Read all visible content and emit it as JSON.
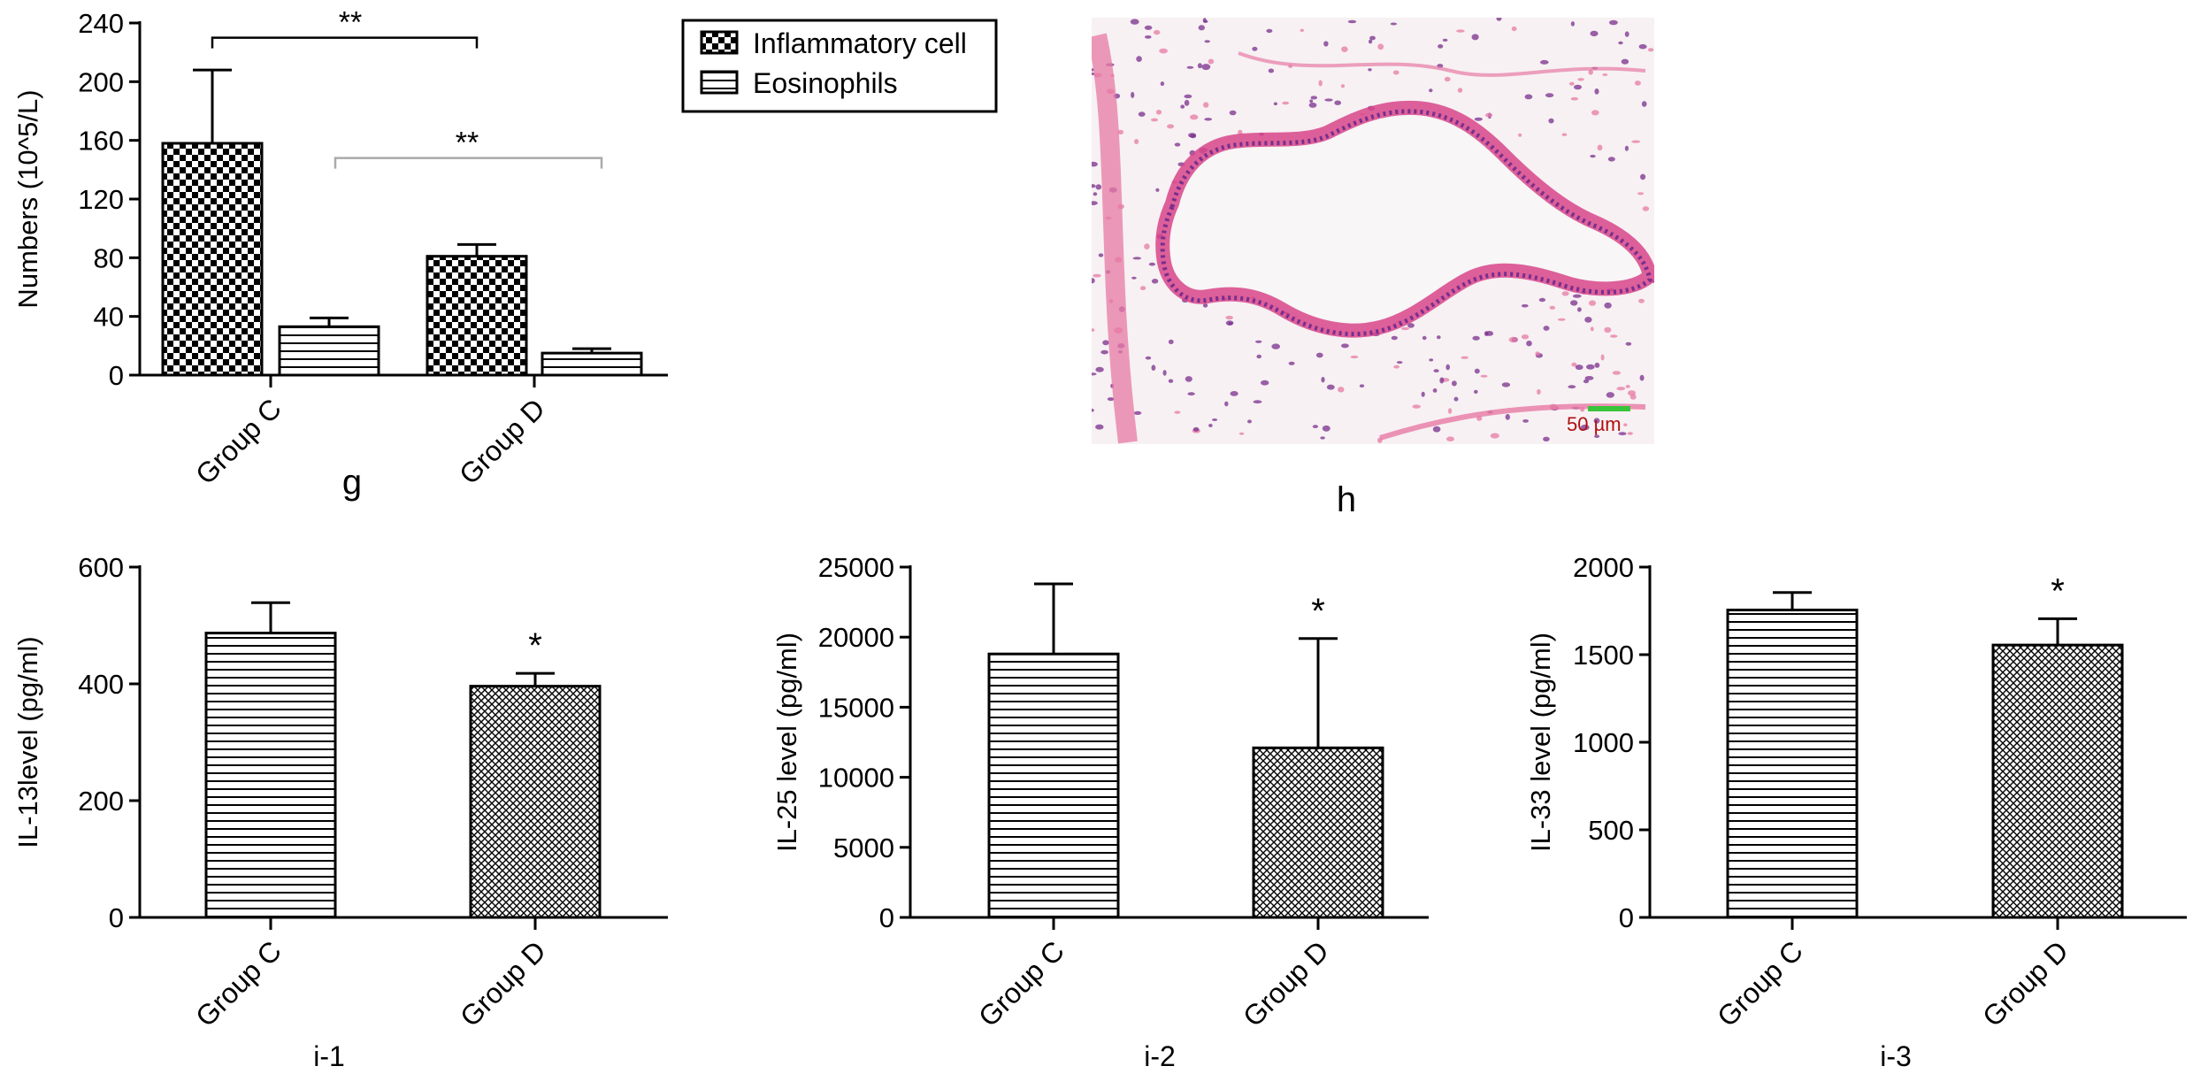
{
  "panels": {
    "g": "g",
    "h": "h",
    "i1": "i-1",
    "i2": "i-2",
    "i3": "i-3"
  },
  "micrograph": {
    "scale_bar_label": "50 µm",
    "colors": {
      "background": "#f7f1f3",
      "tissue_pink": "#e77aa4",
      "nuclei": "#7a2e8c",
      "scale_bar": "#39c43a",
      "scale_text": "#b01010"
    }
  },
  "chart_data": [
    {
      "id": "g",
      "type": "bar",
      "categories": [
        "Group C",
        "Group D"
      ],
      "ylabel": "Numbers (10^5/L)",
      "ylim": [
        0,
        240
      ],
      "yticks": [
        0,
        40,
        80,
        120,
        160,
        200,
        240
      ],
      "series": [
        {
          "name": "Inflammatory cell",
          "pattern": "checker",
          "values": [
            158,
            81
          ],
          "errors": [
            50,
            8
          ]
        },
        {
          "name": "Eosinophils",
          "pattern": "hlines",
          "values": [
            33,
            15
          ],
          "errors": [
            6,
            3
          ]
        }
      ],
      "annotations": [
        "**",
        "**"
      ],
      "legend": "top-right"
    },
    {
      "id": "i-1",
      "type": "bar",
      "categories": [
        "Group C",
        "Group D"
      ],
      "ylabel": "IL-13level (pg/ml)",
      "ylim": [
        0,
        600
      ],
      "yticks": [
        0,
        200,
        400,
        600
      ],
      "patterns": [
        "hlines",
        "hatch"
      ],
      "values": [
        487,
        396
      ],
      "errors": [
        52,
        22
      ],
      "significance": [
        "",
        "*"
      ]
    },
    {
      "id": "i-2",
      "type": "bar",
      "categories": [
        "Group C",
        "Group D"
      ],
      "ylabel": "IL-25 level (pg/ml)",
      "ylim": [
        0,
        25000
      ],
      "yticks": [
        0,
        5000,
        10000,
        15000,
        20000,
        25000
      ],
      "patterns": [
        "hlines",
        "hatch"
      ],
      "values": [
        18800,
        12100
      ],
      "errors": [
        5000,
        7800
      ],
      "significance": [
        "",
        "*"
      ]
    },
    {
      "id": "i-3",
      "type": "bar",
      "categories": [
        "Group C",
        "Group D"
      ],
      "ylabel": "IL-33 level (pg/ml)",
      "ylim": [
        0,
        2000
      ],
      "yticks": [
        0,
        500,
        1000,
        1500,
        2000
      ],
      "patterns": [
        "hlines",
        "hatch"
      ],
      "values": [
        1755,
        1555
      ],
      "errors": [
        100,
        150
      ],
      "significance": [
        "",
        "*"
      ]
    }
  ]
}
